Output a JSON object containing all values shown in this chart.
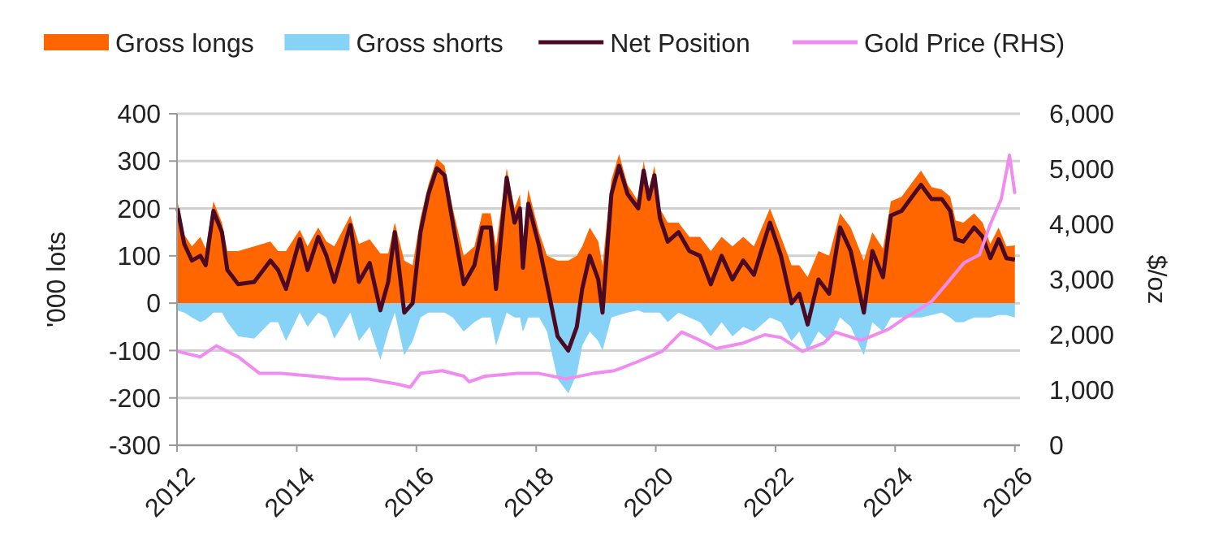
{
  "chart_data": {
    "type": "area",
    "ylabel": "'000 lots",
    "y2label": "$/oz",
    "legend": "top",
    "grid": "y",
    "xlim": [
      "2012-01-01",
      "2026-02-01"
    ],
    "xticks": [
      {
        "value": "2012-01-01",
        "label": "2012"
      },
      {
        "value": "2014-01-01",
        "label": "2014"
      },
      {
        "value": "2016-01-01",
        "label": "2016"
      },
      {
        "value": "2018-01-01",
        "label": "2018"
      },
      {
        "value": "2020-01-01",
        "label": "2020"
      },
      {
        "value": "2022-01-01",
        "label": "2022"
      },
      {
        "value": "2024-01-01",
        "label": "2024"
      },
      {
        "value": "2026-01-01",
        "label": "2026"
      }
    ],
    "ylim": [
      -300,
      400
    ],
    "yticks": [
      -300,
      -200,
      -100,
      0,
      100,
      200,
      300,
      400
    ],
    "y2lim": [
      0,
      6000
    ],
    "y2ticks": [
      {
        "value": 0,
        "label": "0"
      },
      {
        "value": 1000,
        "label": "1,000"
      },
      {
        "value": 2000,
        "label": "2,000"
      },
      {
        "value": 3000,
        "label": "3,000"
      },
      {
        "value": 4000,
        "label": "4,000"
      },
      {
        "value": 5000,
        "label": "5,000"
      },
      {
        "value": 6000,
        "label": "6,000"
      }
    ],
    "x": [
      "2012-01-04",
      "2012-02-14",
      "2012-04-01",
      "2012-05-22",
      "2012-06-24",
      "2012-08-10",
      "2012-10-01",
      "2012-11-03",
      "2013-01-08",
      "2013-04-16",
      "2013-07-24",
      "2013-09-09",
      "2013-10-27",
      "2014-01-19",
      "2014-03-08",
      "2014-05-12",
      "2014-07-01",
      "2014-08-18",
      "2014-11-24",
      "2015-01-15",
      "2015-03-22",
      "2015-05-26",
      "2015-07-13",
      "2015-08-22",
      "2015-10-19",
      "2015-12-09",
      "2016-01-26",
      "2016-03-14",
      "2016-05-05",
      "2016-06-21",
      "2016-08-10",
      "2016-10-16",
      "2016-12-20",
      "2017-02-06",
      "2017-03-29",
      "2017-05-01",
      "2017-07-05",
      "2017-08-22",
      "2017-09-24",
      "2017-10-12",
      "2017-11-14",
      "2018-01-19",
      "2018-03-08",
      "2018-05-12",
      "2018-07-16",
      "2018-09-06",
      "2018-10-09",
      "2018-11-24",
      "2019-01-15",
      "2019-02-10",
      "2019-04-05",
      "2019-05-22",
      "2019-07-13",
      "2019-09-16",
      "2019-10-19",
      "2019-11-20",
      "2019-12-24",
      "2020-01-26",
      "2020-03-14",
      "2020-05-19",
      "2020-07-24",
      "2020-09-27",
      "2020-12-02",
      "2021-02-06",
      "2021-04-13",
      "2021-06-18",
      "2021-08-22",
      "2021-11-28",
      "2022-02-03",
      "2022-04-09",
      "2022-05-26",
      "2022-07-16",
      "2022-09-20",
      "2022-11-24",
      "2023-01-30",
      "2023-04-05",
      "2023-06-24",
      "2023-08-15",
      "2023-10-19",
      "2023-12-06",
      "2024-02-10",
      "2024-05-05",
      "2024-06-07",
      "2024-08-10",
      "2024-10-12",
      "2024-12-02",
      "2025-01-04",
      "2025-02-21",
      "2025-04-27",
      "2025-06-18",
      "2025-08-04",
      "2025-09-24",
      "2025-11-10",
      "2026-01-01"
    ],
    "series": [
      {
        "name": "Gross longs",
        "color": "#ff6600",
        "values": [
          215,
          145,
          120,
          140,
          115,
          215,
          170,
          110,
          110,
          120,
          130,
          110,
          110,
          155,
          120,
          160,
          130,
          120,
          185,
          125,
          135,
          105,
          105,
          170,
          90,
          80,
          180,
          250,
          305,
          290,
          200,
          100,
          120,
          190,
          190,
          120,
          285,
          200,
          230,
          135,
          240,
          150,
          100,
          90,
          90,
          100,
          120,
          160,
          130,
          80,
          260,
          315,
          250,
          215,
          300,
          240,
          290,
          200,
          170,
          170,
          140,
          140,
          110,
          140,
          120,
          140,
          120,
          200,
          140,
          80,
          80,
          55,
          110,
          100,
          190,
          160,
          90,
          150,
          115,
          215,
          225,
          265,
          280,
          245,
          240,
          225,
          175,
          170,
          190,
          170,
          125,
          160,
          120,
          122
        ]
      },
      {
        "name": "Gross shorts",
        "type": "area",
        "color": "#87d3f8",
        "values": [
          -15,
          -20,
          -30,
          -40,
          -35,
          -20,
          -20,
          -40,
          -70,
          -75,
          -40,
          -40,
          -80,
          -20,
          -50,
          -20,
          -30,
          -75,
          -20,
          -80,
          -50,
          -120,
          -60,
          -20,
          -110,
          -80,
          -30,
          -20,
          -20,
          -20,
          -30,
          -60,
          -40,
          -30,
          -30,
          -90,
          -20,
          -30,
          -30,
          -60,
          -30,
          -30,
          -60,
          -160,
          -190,
          -150,
          -90,
          -60,
          -80,
          -100,
          -30,
          -25,
          -20,
          -15,
          -20,
          -20,
          -20,
          -20,
          -40,
          -20,
          -30,
          -40,
          -70,
          -40,
          -70,
          -50,
          -60,
          -30,
          -40,
          -80,
          -60,
          -100,
          -60,
          -80,
          -30,
          -50,
          -110,
          -40,
          -60,
          -30,
          -30,
          -30,
          -30,
          -25,
          -20,
          -30,
          -40,
          -40,
          -30,
          -30,
          -30,
          -25,
          -25,
          -30
        ]
      },
      {
        "name": "Net Position",
        "type": "line",
        "color": "#4a0a24",
        "values": [
          200,
          125,
          90,
          100,
          80,
          195,
          150,
          70,
          40,
          45,
          90,
          70,
          30,
          135,
          70,
          140,
          100,
          45,
          165,
          45,
          85,
          -15,
          45,
          150,
          -20,
          0,
          150,
          230,
          285,
          270,
          170,
          40,
          80,
          160,
          160,
          30,
          265,
          170,
          200,
          75,
          210,
          120,
          40,
          -70,
          -100,
          -50,
          30,
          100,
          50,
          -20,
          230,
          290,
          230,
          200,
          280,
          220,
          270,
          180,
          130,
          150,
          110,
          100,
          40,
          100,
          50,
          90,
          60,
          170,
          100,
          0,
          20,
          -45,
          50,
          20,
          160,
          110,
          -20,
          110,
          55,
          185,
          195,
          235,
          250,
          220,
          220,
          195,
          135,
          130,
          160,
          140,
          95,
          135,
          95,
          92
        ]
      },
      {
        "name": "Gold Price (RHS)",
        "type": "line",
        "axis": "y2",
        "color": "#f08cf0",
        "x": [
          "2012-01-04",
          "2012-05-22",
          "2012-08-28",
          "2013-01-08",
          "2013-05-19",
          "2013-09-27",
          "2014-04-12",
          "2014-09-24",
          "2015-03-08",
          "2015-09-20",
          "2015-11-24",
          "2016-01-26",
          "2016-06-07",
          "2016-10-16",
          "2016-11-18",
          "2017-02-24",
          "2017-09-09",
          "2018-01-19",
          "2018-07-01",
          "2018-12-14",
          "2019-04-23",
          "2019-09-02",
          "2020-02-10",
          "2020-06-07",
          "2020-09-27",
          "2021-01-04",
          "2021-06-18",
          "2021-10-27",
          "2022-02-03",
          "2022-06-14",
          "2022-10-23",
          "2022-12-28",
          "2023-06-10",
          "2023-11-22",
          "2024-02-28",
          "2024-08-10",
          "2024-11-18",
          "2025-02-24",
          "2025-05-30",
          "2025-08-04",
          "2025-10-09",
          "2025-11-29",
          "2026-01-01"
        ],
        "values": [
          1700,
          1600,
          1800,
          1600,
          1300,
          1300,
          1250,
          1200,
          1200,
          1100,
          1050,
          1300,
          1350,
          1250,
          1150,
          1250,
          1300,
          1300,
          1200,
          1300,
          1350,
          1500,
          1700,
          2050,
          1900,
          1750,
          1850,
          2000,
          1950,
          1700,
          1850,
          2050,
          1900,
          2100,
          2300,
          2600,
          2950,
          3300,
          3450,
          4000,
          4450,
          5250,
          4550
        ]
      }
    ]
  }
}
